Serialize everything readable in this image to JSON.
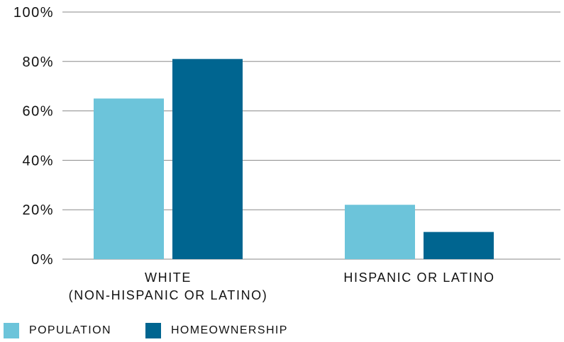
{
  "chart_data": {
    "type": "bar",
    "categories": [
      [
        "WHITE",
        "(NON-HISPANIC OR LATINO)"
      ],
      [
        "HISPANIC OR LATINO"
      ]
    ],
    "series": [
      {
        "name": "POPULATION",
        "color": "#6cc4da",
        "values": [
          65,
          22
        ]
      },
      {
        "name": "HOMEOWNERSHIP",
        "color": "#006590",
        "values": [
          81,
          11
        ]
      }
    ],
    "ylim": [
      0,
      100
    ],
    "yticks": [
      0,
      20,
      40,
      60,
      80,
      100
    ],
    "ytick_labels": [
      "0%",
      "20%",
      "40%",
      "60%",
      "80%",
      "100%"
    ],
    "grid": true,
    "legend_position": "bottom-left"
  }
}
